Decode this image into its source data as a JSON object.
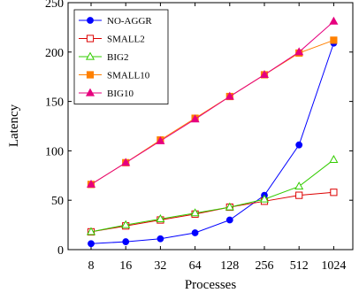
{
  "chart_data": {
    "type": "line",
    "title": "",
    "xlabel": "Processes",
    "ylabel": "Latency",
    "x_scale": "log2",
    "categories": [
      "8",
      "16",
      "32",
      "64",
      "128",
      "256",
      "512",
      "1024"
    ],
    "x": [
      8,
      16,
      32,
      64,
      128,
      256,
      512,
      1024
    ],
    "ylim": [
      0,
      250
    ],
    "yticks": [
      0,
      50,
      100,
      150,
      200,
      250
    ],
    "grid": false,
    "legend_position": "top-left",
    "series": [
      {
        "name": "NO-AGGR",
        "color": "#0000ff",
        "marker": "circle",
        "values": [
          6,
          8,
          11,
          17,
          30,
          55,
          106,
          209
        ]
      },
      {
        "name": "SMALL2",
        "color": "#dd0000",
        "marker": "square-open",
        "values": [
          18,
          24,
          30,
          36,
          43,
          49,
          55,
          58
        ]
      },
      {
        "name": "BIG2",
        "color": "#33cc00",
        "marker": "triangle-open",
        "values": [
          18,
          25,
          31,
          37,
          43,
          51,
          64,
          91
        ]
      },
      {
        "name": "SMALL10",
        "color": "#ff8000",
        "marker": "square",
        "values": [
          66,
          88,
          111,
          133,
          155,
          177,
          199,
          212
        ]
      },
      {
        "name": "BIG10",
        "color": "#e6007e",
        "marker": "triangle",
        "values": [
          66,
          88,
          110,
          132,
          155,
          177,
          200,
          231
        ]
      }
    ]
  }
}
